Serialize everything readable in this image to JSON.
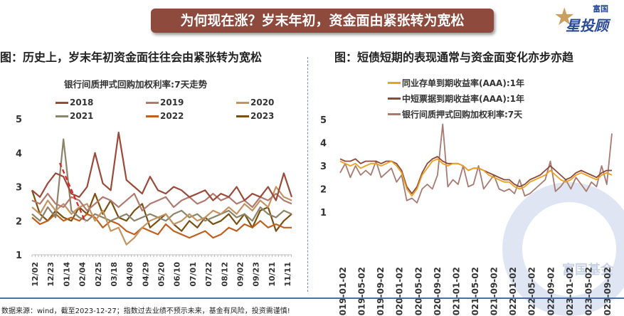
{
  "banner": "为何现在涨？岁末年初，资金面由紧张转为宽松",
  "logo": {
    "top": "富国",
    "main": "星投顾"
  },
  "watermark": "富国基金",
  "footer": "数据来源：wind，截至2023-12-27；指数过去业绩不预示未来，基金有风险，投资需谨慎!",
  "chart_data": [
    {
      "type": "line",
      "heading": "图：历史上，岁末年初资金面往往会由紧张转为宽松",
      "title": "银行间质押式回购加权利率:7天走势",
      "ylim": [
        1,
        5
      ],
      "yticks": [
        "1",
        "2",
        "3",
        "4",
        "5"
      ],
      "xticks": [
        "12/02",
        "12/23",
        "01/14",
        "02/04",
        "02/25",
        "03/18",
        "04/08",
        "04/29",
        "05/20",
        "06/10",
        "07/01",
        "07/22",
        "08/12",
        "09/02",
        "09/23",
        "10/21",
        "11/11"
      ],
      "series": [
        {
          "name": "2018",
          "color": "#9b4a3a",
          "values": [
            2.9,
            2.7,
            3.1,
            3.4,
            3.3,
            2.8,
            2.7,
            3.0,
            4.0,
            3.1,
            2.9,
            4.6,
            3.2,
            3.0,
            2.8,
            3.3,
            2.9,
            2.8,
            3.0,
            2.9,
            2.7,
            2.8,
            2.9,
            2.6,
            2.8,
            2.7,
            3.0,
            2.6,
            2.8,
            2.7,
            3.0,
            2.6,
            3.4,
            2.7
          ]
        },
        {
          "name": "2019",
          "color": "#b07a6e",
          "values": [
            2.6,
            2.5,
            2.8,
            2.5,
            2.4,
            2.7,
            2.6,
            2.3,
            2.5,
            2.7,
            2.6,
            2.4,
            2.6,
            2.8,
            2.3,
            2.5,
            2.6,
            2.7,
            2.4,
            2.6,
            2.7,
            2.5,
            2.6,
            2.8,
            2.6,
            2.7,
            2.5,
            2.6,
            2.4,
            2.7,
            2.6,
            2.8,
            2.6,
            2.5
          ]
        },
        {
          "name": "2020",
          "color": "#c49362",
          "values": [
            2.4,
            2.2,
            2.6,
            2.3,
            2.5,
            2.2,
            2.4,
            2.5,
            2.0,
            2.3,
            1.7,
            1.8,
            1.3,
            1.5,
            1.8,
            2.0,
            2.1,
            2.2,
            1.9,
            2.0,
            2.2,
            2.0,
            2.1,
            2.3,
            2.2,
            2.4,
            2.2,
            2.5,
            2.3,
            2.6,
            2.4,
            3.0,
            2.7,
            2.6
          ]
        },
        {
          "name": "2021",
          "color": "#8c8468",
          "values": [
            2.2,
            2.0,
            2.4,
            2.1,
            4.4,
            2.3,
            2.1,
            2.0,
            2.2,
            2.1,
            2.0,
            2.1,
            2.2,
            2.0,
            2.1,
            2.2,
            2.1,
            2.0,
            2.2,
            2.3,
            2.1,
            2.2,
            2.0,
            2.1,
            2.2,
            2.3,
            2.1,
            2.2,
            2.0,
            2.4,
            2.2,
            2.1,
            2.3,
            2.2
          ]
        },
        {
          "name": "2022",
          "color": "#c0601e",
          "values": [
            2.1,
            1.9,
            2.0,
            2.2,
            2.0,
            2.1,
            2.0,
            2.2,
            2.1,
            1.8,
            2.0,
            1.9,
            1.7,
            1.6,
            1.8,
            1.7,
            1.6,
            1.9,
            1.7,
            1.6,
            1.5,
            1.6,
            1.7,
            1.5,
            1.6,
            1.8,
            1.7,
            1.9,
            1.8,
            2.0,
            1.8,
            1.9,
            1.8,
            1.8
          ]
        },
        {
          "name": "2023",
          "color": "#7a5010",
          "values": [
            2.9,
            2.2,
            2.0,
            2.3,
            2.1,
            2.0,
            2.4,
            2.2,
            2.8,
            2.2,
            2.6,
            2.1,
            2.0,
            2.3,
            2.5,
            1.8,
            2.0,
            2.2,
            1.9,
            1.7,
            2.0,
            1.8,
            2.1,
            1.9,
            2.0,
            2.2,
            1.9,
            2.2,
            1.8,
            2.3,
            2.4,
            1.7,
            2.0,
            2.2
          ]
        }
      ]
    },
    {
      "type": "line",
      "heading": "图：短债短期的表现通常与资金面变化亦步亦趋",
      "ylim": [
        1,
        5
      ],
      "yticks": [
        "1",
        "2",
        "3",
        "4",
        "5"
      ],
      "xticks": [
        "2019-01-02",
        "2019-05-02",
        "2019-09-02",
        "2020-01-02",
        "2020-05-02",
        "2020-09-02",
        "2021-01-02",
        "2021-05-02",
        "2021-09-02",
        "2022-01-02",
        "2022-05-02",
        "2022-09-02",
        "2023-01-02",
        "2023-05-02",
        "2023-09-02"
      ],
      "series": [
        {
          "name": "同业存单到期收益率(AAA):1年",
          "color": "#f0a020",
          "values": [
            3.2,
            3.1,
            3.0,
            3.1,
            2.9,
            3.0,
            3.1,
            3.1,
            3.0,
            3.1,
            3.2,
            3.0,
            2.7,
            2.0,
            1.7,
            2.0,
            2.6,
            2.9,
            3.2,
            3.3,
            3.1,
            3.0,
            3.1,
            3.1,
            3.0,
            2.8,
            2.9,
            2.9,
            2.8,
            2.6,
            2.5,
            2.4,
            2.3,
            2.3,
            2.1,
            2.0,
            2.1,
            2.3,
            2.4,
            2.5,
            2.6,
            2.8,
            2.6,
            2.4,
            2.3,
            2.4,
            2.6,
            2.7,
            2.6,
            2.5,
            2.4,
            2.6,
            2.7,
            2.6
          ]
        },
        {
          "name": "中短票据到期收益率(AAA):1年",
          "color": "#8b4a3a",
          "values": [
            3.3,
            3.2,
            3.2,
            3.3,
            3.1,
            3.2,
            3.2,
            3.2,
            3.1,
            3.2,
            3.2,
            3.1,
            2.8,
            2.1,
            1.8,
            2.1,
            2.7,
            3.1,
            3.3,
            3.4,
            3.2,
            3.1,
            3.1,
            3.1,
            3.0,
            2.8,
            2.9,
            2.9,
            2.8,
            2.7,
            2.6,
            2.5,
            2.4,
            2.4,
            2.2,
            2.1,
            2.2,
            2.4,
            2.5,
            2.6,
            2.8,
            3.0,
            2.8,
            2.6,
            2.4,
            2.5,
            2.7,
            2.8,
            2.7,
            2.6,
            2.5,
            2.7,
            2.8,
            2.8
          ]
        },
        {
          "name": "银行间质押式回购加权利率:7天",
          "color": "#a87a70",
          "values": [
            2.7,
            3.1,
            2.5,
            3.0,
            2.6,
            2.8,
            2.6,
            3.2,
            2.5,
            2.7,
            2.9,
            2.3,
            2.6,
            1.5,
            1.6,
            1.4,
            2.0,
            2.2,
            2.0,
            2.6,
            4.8,
            2.1,
            2.4,
            2.2,
            3.0,
            2.1,
            2.2,
            3.0,
            2.0,
            2.3,
            2.6,
            2.0,
            1.9,
            2.0,
            1.8,
            2.4,
            1.7,
            1.8,
            2.0,
            2.2,
            2.4,
            3.2,
            1.9,
            2.1,
            2.4,
            2.0,
            2.5,
            2.2,
            1.9,
            2.3,
            2.1,
            3.0,
            2.2,
            4.4
          ]
        }
      ]
    }
  ]
}
